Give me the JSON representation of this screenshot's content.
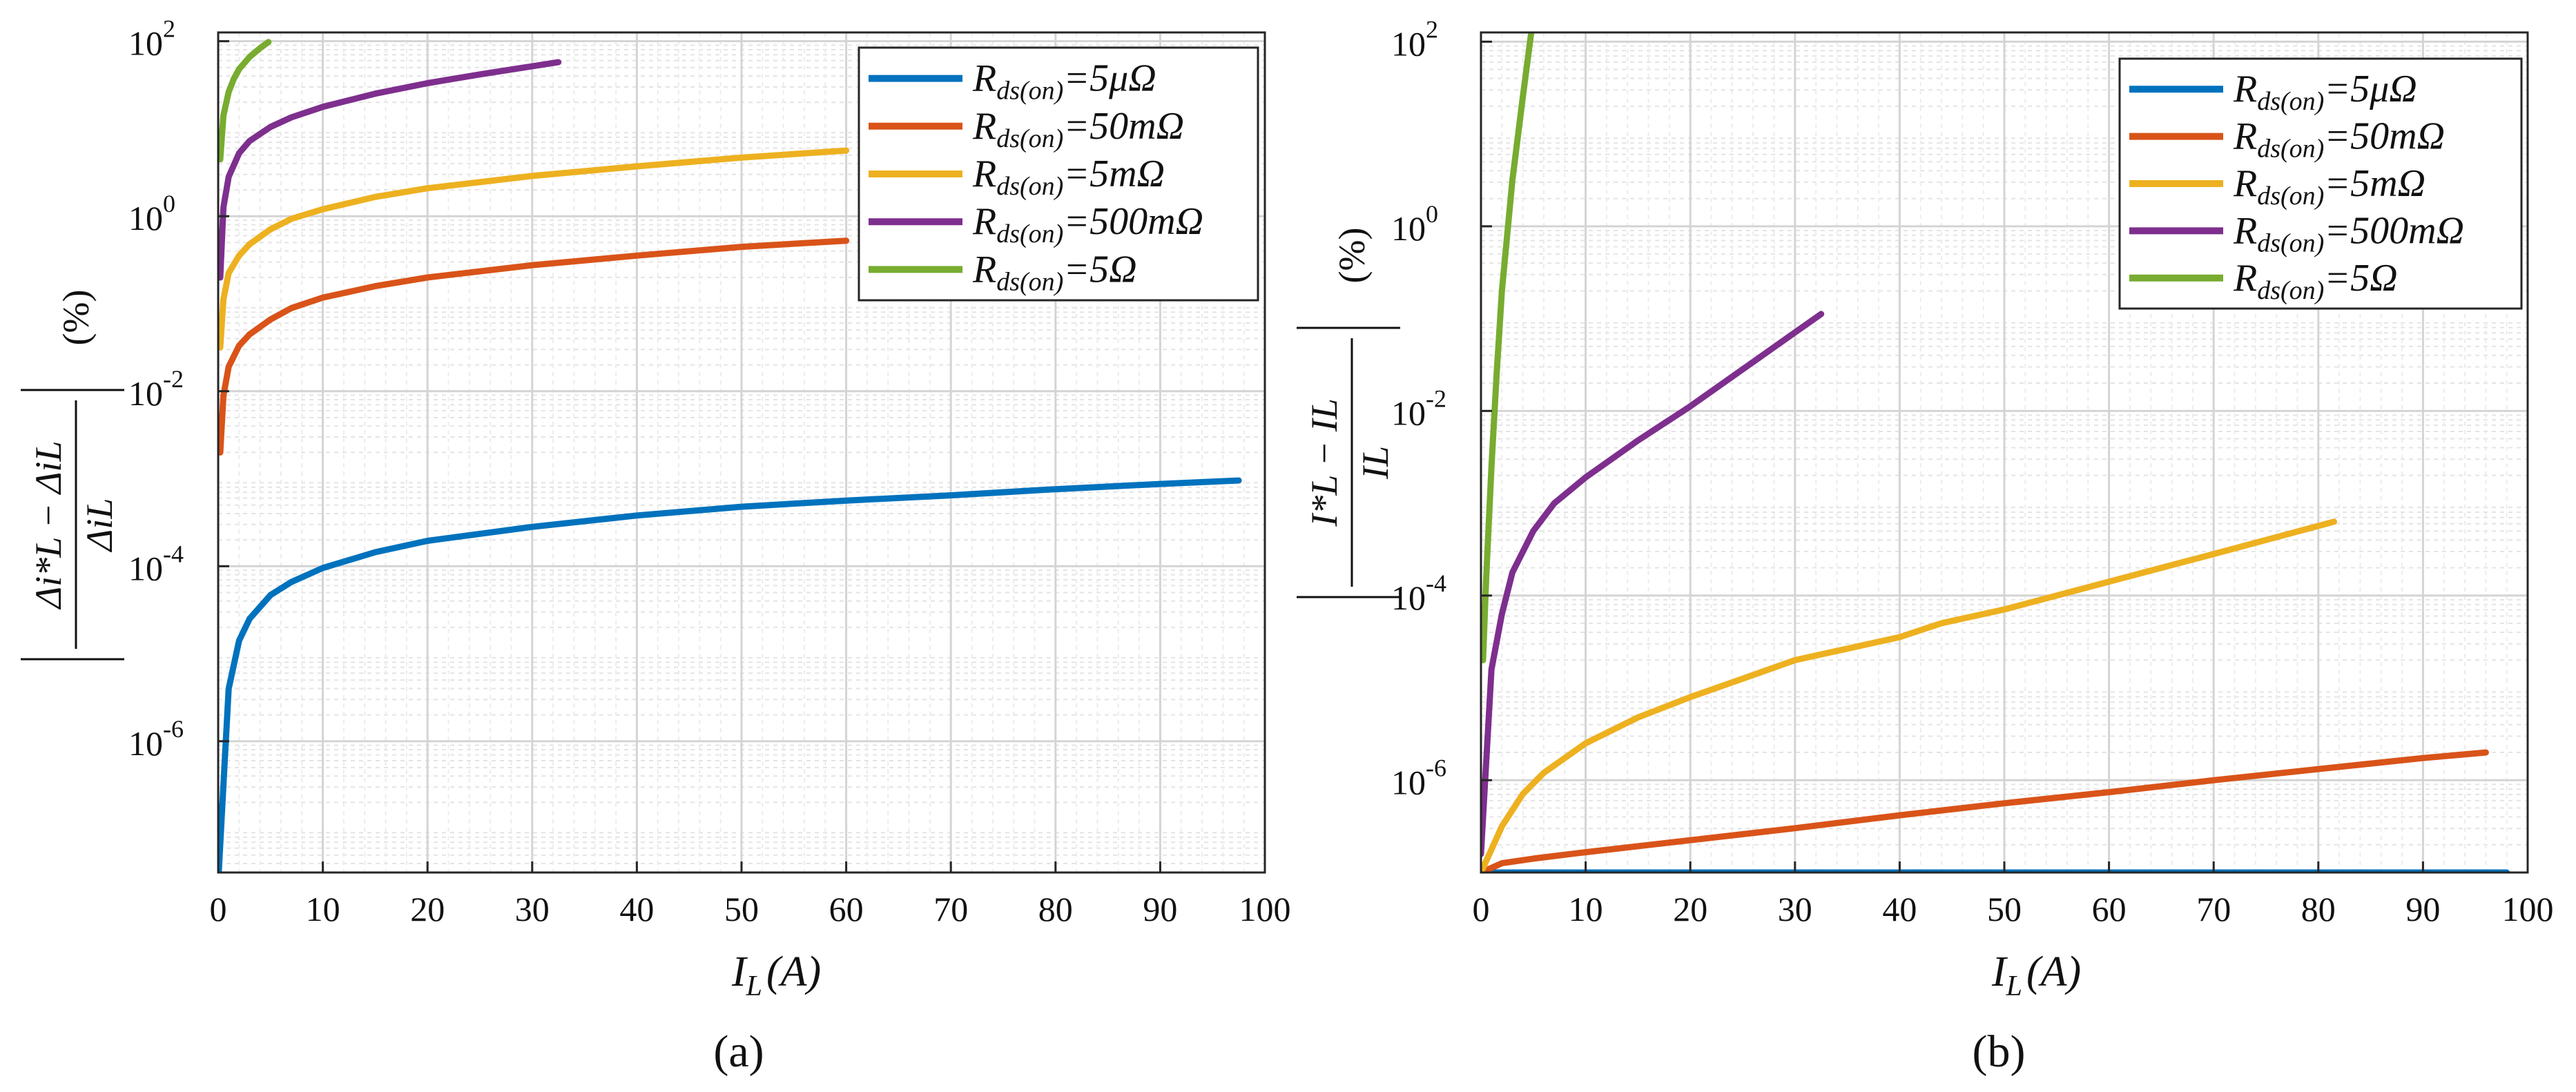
{
  "figure": {
    "panels": [
      "(a)",
      "(b)"
    ]
  },
  "chart_data": [
    {
      "type": "line",
      "panel": "(a)",
      "title": "",
      "xlabel": "I_L (A)",
      "xlabel_main": "I",
      "xlabel_sub": "L",
      "xlabel_unit": "(A)",
      "ylabel": "|(Δi*_L − Δi_L) / Δi_L| (%)",
      "ylabel_numerator": "Δi*L − ΔiL",
      "ylabel_denominator": "ΔiL",
      "ylabel_unit": "(%)",
      "xscale": "linear",
      "yscale": "log",
      "xlim": [
        0,
        100
      ],
      "ylim_log10": [
        -7.5,
        2.1
      ],
      "xticks": [
        0,
        10,
        20,
        30,
        40,
        50,
        60,
        70,
        80,
        90,
        100
      ],
      "yticks": [
        "10",
        "10",
        "10",
        "10",
        "10"
      ],
      "ytick_exponents": [
        "2",
        "0",
        "-2",
        "-4",
        "-6"
      ],
      "ytick_values_log10": [
        2,
        0,
        -2,
        -4,
        -6
      ],
      "grid": true,
      "legend_position": "top-right",
      "series": [
        {
          "name": "Rds(on)=5μΩ",
          "label_main": "R",
          "label_sub": "ds(on)",
          "label_value": "=5μΩ",
          "color": "#0072BD",
          "x": [
            0.05,
            0.5,
            1,
            2,
            3,
            5,
            7,
            10,
            15,
            20,
            30,
            40,
            50,
            60,
            70,
            80,
            90,
            97.5
          ],
          "log10_y": [
            -7.5,
            -6.5,
            -5.4,
            -4.85,
            -4.6,
            -4.33,
            -4.18,
            -4.02,
            -3.84,
            -3.71,
            -3.55,
            -3.42,
            -3.32,
            -3.25,
            -3.19,
            -3.12,
            -3.06,
            -3.02
          ]
        },
        {
          "name": "Rds(on)=50mΩ",
          "label_main": "R",
          "label_sub": "ds(on)",
          "label_value": "=50mΩ",
          "color": "#D95319",
          "x": [
            0.2,
            0.5,
            1,
            2,
            3,
            5,
            7,
            10,
            15,
            20,
            30,
            40,
            50,
            60
          ],
          "log10_y": [
            -2.7,
            -2.05,
            -1.72,
            -1.48,
            -1.35,
            -1.18,
            -1.05,
            -0.93,
            -0.8,
            -0.7,
            -0.56,
            -0.45,
            -0.35,
            -0.28
          ]
        },
        {
          "name": "Rds(on)=5mΩ",
          "label_main": "R",
          "label_sub": "ds(on)",
          "label_value": "=5mΩ",
          "color": "#EDB120",
          "x": [
            0.2,
            0.5,
            1,
            2,
            3,
            5,
            7,
            10,
            15,
            20,
            30,
            40,
            50,
            60
          ],
          "log10_y": [
            -1.5,
            -0.95,
            -0.65,
            -0.45,
            -0.32,
            -0.15,
            -0.03,
            0.08,
            0.22,
            0.32,
            0.46,
            0.57,
            0.67,
            0.75
          ]
        },
        {
          "name": "Rds(on)=500mΩ",
          "label_main": "R",
          "label_sub": "ds(on)",
          "label_value": "=500mΩ",
          "color": "#7E2F8E",
          "x": [
            0.2,
            0.5,
            1,
            2,
            3,
            5,
            7,
            10,
            15,
            20,
            25,
            32.5
          ],
          "log10_y": [
            -0.7,
            0.1,
            0.45,
            0.72,
            0.86,
            1.02,
            1.13,
            1.25,
            1.4,
            1.52,
            1.62,
            1.76
          ]
        },
        {
          "name": "Rds(on)=5Ω",
          "label_main": "R",
          "label_sub": "ds(on)",
          "label_value": "=5Ω",
          "color": "#77AC30",
          "x": [
            0.2,
            0.5,
            1,
            1.5,
            2,
            3,
            4,
            4.8
          ],
          "log10_y": [
            0.65,
            1.15,
            1.42,
            1.57,
            1.68,
            1.82,
            1.92,
            1.99
          ]
        }
      ]
    },
    {
      "type": "line",
      "panel": "(b)",
      "title": "",
      "xlabel": "I_L (A)",
      "xlabel_main": "I",
      "xlabel_sub": "L",
      "xlabel_unit": "(A)",
      "ylabel": "|(I*_L − I_L) / I_L| (%)",
      "ylabel_numerator": "I*L − IL",
      "ylabel_denominator": "IL",
      "ylabel_unit": "(%)",
      "xscale": "linear",
      "yscale": "log",
      "xlim": [
        0,
        100
      ],
      "ylim_log10": [
        -7.0,
        2.1
      ],
      "xticks": [
        0,
        10,
        20,
        30,
        40,
        50,
        60,
        70,
        80,
        90,
        100
      ],
      "yticks": [
        "10",
        "10",
        "10",
        "10",
        "10"
      ],
      "ytick_exponents": [
        "2",
        "0",
        "-2",
        "-4",
        "-6"
      ],
      "ytick_values_log10": [
        2,
        0,
        -2,
        -4,
        -6
      ],
      "grid": true,
      "legend_position": "top-right",
      "series": [
        {
          "name": "Rds(on)=5μΩ",
          "label_main": "R",
          "label_sub": "ds(on)",
          "label_value": "=5μΩ",
          "color": "#0072BD",
          "x": [
            0,
            20,
            40,
            60,
            80,
            98
          ],
          "log10_y": [
            -7.0,
            -7.0,
            -7.0,
            -7.0,
            -7.0,
            -7.0
          ]
        },
        {
          "name": "Rds(on)=50mΩ",
          "label_main": "R",
          "label_sub": "ds(on)",
          "label_value": "=50mΩ",
          "color": "#D95319",
          "x": [
            0,
            2,
            5,
            10,
            20,
            30,
            40,
            50,
            60,
            70,
            80,
            90,
            96
          ],
          "log10_y": [
            -7.0,
            -6.9,
            -6.85,
            -6.78,
            -6.65,
            -6.52,
            -6.38,
            -6.25,
            -6.13,
            -6.0,
            -5.88,
            -5.76,
            -5.7
          ]
        },
        {
          "name": "Rds(on)=5mΩ",
          "label_main": "R",
          "label_sub": "ds(on)",
          "label_value": "=5mΩ",
          "color": "#EDB120",
          "x": [
            0,
            1,
            2,
            4,
            6,
            10,
            15,
            20,
            25,
            30,
            40,
            44,
            50,
            60,
            70,
            81.5
          ],
          "log10_y": [
            -7.0,
            -6.75,
            -6.5,
            -6.15,
            -5.92,
            -5.6,
            -5.32,
            -5.1,
            -4.9,
            -4.7,
            -4.45,
            -4.3,
            -4.15,
            -3.85,
            -3.55,
            -3.2
          ]
        },
        {
          "name": "Rds(on)=500mΩ",
          "label_main": "R",
          "label_sub": "ds(on)",
          "label_value": "=500mΩ",
          "color": "#7E2F8E",
          "x": [
            0,
            0.5,
            1,
            2,
            3,
            5,
            7,
            10,
            15,
            20,
            25,
            30,
            32.5
          ],
          "log10_y": [
            -6.8,
            -5.8,
            -4.8,
            -4.2,
            -3.75,
            -3.3,
            -3.0,
            -2.72,
            -2.32,
            -1.95,
            -1.55,
            -1.15,
            -0.95
          ]
        },
        {
          "name": "Rds(on)=5Ω",
          "label_main": "R",
          "label_sub": "ds(on)",
          "label_value": "=5Ω",
          "color": "#77AC30",
          "x": [
            0.2,
            0.5,
            1,
            1.5,
            2,
            3,
            4,
            4.8
          ],
          "log10_y": [
            -4.7,
            -3.8,
            -2.6,
            -1.6,
            -0.7,
            0.5,
            1.4,
            2.1
          ]
        }
      ]
    }
  ]
}
